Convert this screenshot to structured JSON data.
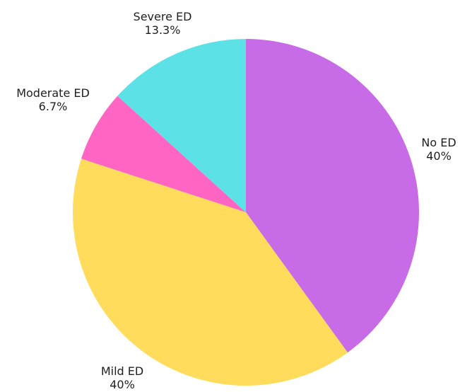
{
  "chart_data": {
    "type": "pie",
    "title": "",
    "slices": [
      {
        "label": "No ED",
        "value_label": "40%",
        "value": 40.0,
        "color": "#c76be6"
      },
      {
        "label": "Mild ED",
        "value_label": "40%",
        "value": 40.0,
        "color": "#ffdc5c"
      },
      {
        "label": "Moderate ED",
        "value_label": "6.7%",
        "value": 6.7,
        "color": "#ff66c4"
      },
      {
        "label": "Severe ED",
        "value_label": "13.3%",
        "value": 13.3,
        "color": "#5ce1e6"
      }
    ],
    "start_angle": "12 o'clock",
    "direction": "clockwise",
    "legend": "none",
    "labels": "outside"
  }
}
